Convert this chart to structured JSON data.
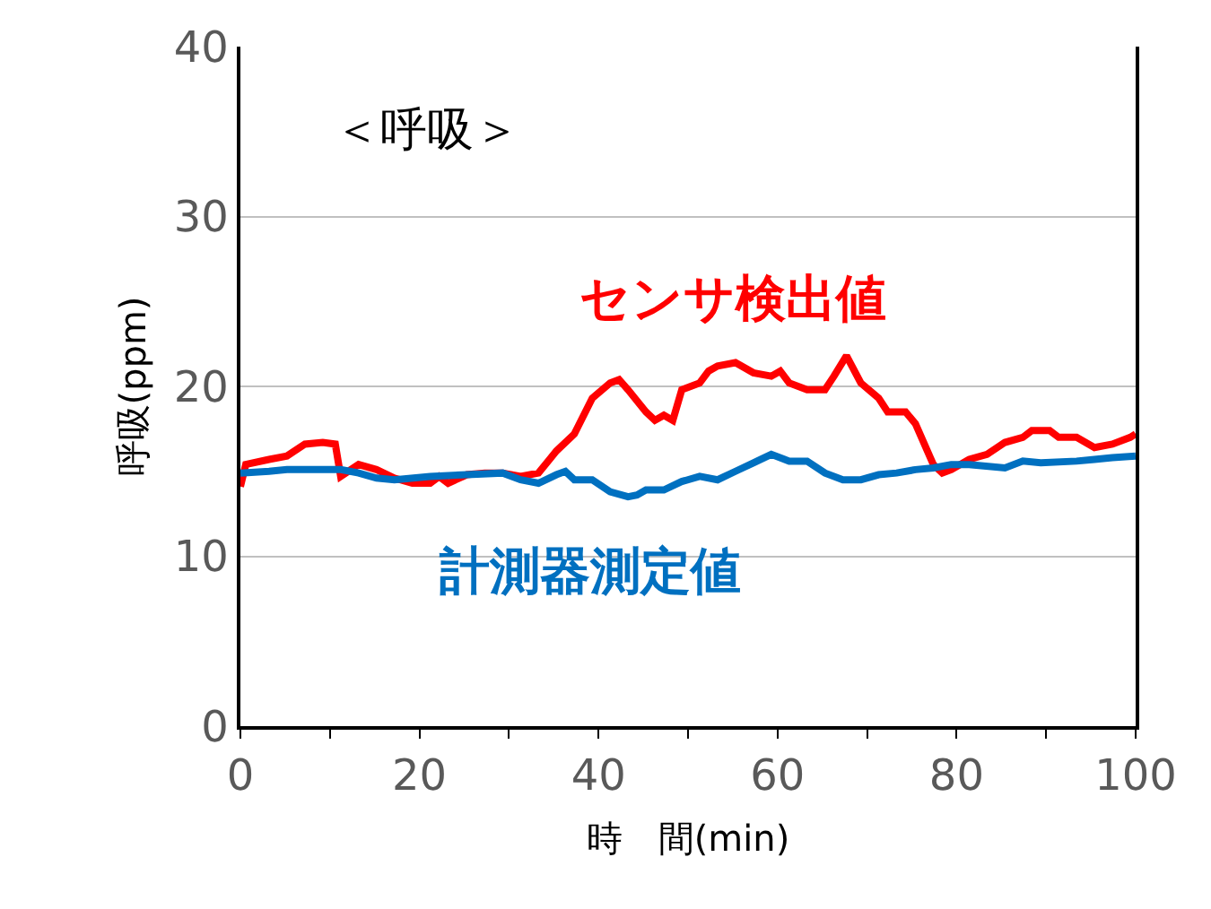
{
  "chart_data": {
    "type": "line",
    "title": "＜呼吸＞",
    "xlabel": "時　間(min)",
    "ylabel": "呼吸(ppm)",
    "xlim": [
      0,
      100
    ],
    "xticks": [
      0,
      {
        "value": 10,
        "label": null
      },
      20,
      {
        "value": 30,
        "label": null
      },
      40,
      {
        "value": 50,
        "label": null
      },
      60,
      {
        "value": 70,
        "label": null
      },
      80,
      {
        "value": 90,
        "label": null
      },
      100
    ],
    "ylim": [
      0,
      40
    ],
    "yticks": [
      0,
      10,
      20,
      30,
      40
    ],
    "grid": "y",
    "legend": false,
    "marker": "none",
    "line_style": "solid",
    "series": [
      {
        "name": "センサ検出値",
        "color": "#ff0000",
        "x": [
          0,
          0.6,
          3.2,
          5.2,
          7.2,
          9.2,
          10.6,
          11.2,
          13.2,
          15.2,
          17.2,
          19.2,
          21.2,
          22.2,
          23.2,
          25.3,
          27.3,
          29.3,
          31.3,
          33.3,
          35.3,
          37.3,
          39.3,
          41.3,
          42.3,
          43.3,
          45.3,
          46.3,
          47.3,
          48.3,
          49.3,
          50.3,
          51.3,
          52.3,
          53.3,
          55.3,
          57.3,
          59.3,
          60.3,
          61.3,
          63.3,
          65.3,
          66.3,
          67.7,
          69.3,
          71.3,
          72.3,
          74.3,
          75.4,
          77.4,
          78.4,
          79.4,
          81.4,
          83.4,
          85.4,
          87.4,
          88.4,
          90.4,
          91.4,
          93.4,
          95.4,
          97.4,
          99.4,
          100
        ],
        "values": [
          14.1,
          15.4,
          15.7,
          15.9,
          16.6,
          16.7,
          16.6,
          14.7,
          15.4,
          15.1,
          14.6,
          14.3,
          14.3,
          14.7,
          14.3,
          14.8,
          14.9,
          14.9,
          14.7,
          14.9,
          16.2,
          17.2,
          19.3,
          20.2,
          20.4,
          19.8,
          18.5,
          18.0,
          18.3,
          18.0,
          19.8,
          20.0,
          20.2,
          20.9,
          21.2,
          21.4,
          20.8,
          20.6,
          20.9,
          20.2,
          19.8,
          19.8,
          20.6,
          21.8,
          20.2,
          19.3,
          18.5,
          18.5,
          17.8,
          15.4,
          14.9,
          15.1,
          15.7,
          16.0,
          16.7,
          17.0,
          17.4,
          17.4,
          17.0,
          17.0,
          16.4,
          16.6,
          17.0,
          17.2
        ]
      },
      {
        "name": "計測器測定値",
        "color": "#0070c0",
        "x": [
          0,
          3.2,
          5.2,
          11.2,
          13.2,
          15.2,
          17.2,
          21.2,
          25.3,
          29.3,
          31.3,
          33.3,
          35.3,
          36.3,
          37.3,
          39.3,
          41.3,
          43.3,
          44.3,
          45.3,
          47.3,
          49.3,
          51.3,
          53.3,
          55.3,
          57.3,
          59.3,
          61.3,
          63.3,
          65.3,
          67.3,
          69.3,
          71.3,
          73.3,
          75.4,
          77.4,
          79.4,
          81.4,
          85.4,
          87.4,
          89.4,
          93.4,
          95.4,
          97.4,
          100
        ],
        "values": [
          14.9,
          15.0,
          15.1,
          15.1,
          14.9,
          14.6,
          14.5,
          14.7,
          14.8,
          14.9,
          14.5,
          14.3,
          14.8,
          15.0,
          14.5,
          14.5,
          13.8,
          13.5,
          13.6,
          13.9,
          13.9,
          14.4,
          14.7,
          14.5,
          15.0,
          15.5,
          16.0,
          15.6,
          15.6,
          14.9,
          14.5,
          14.5,
          14.8,
          14.9,
          15.1,
          15.2,
          15.4,
          15.4,
          15.2,
          15.6,
          15.5,
          15.6,
          15.7,
          15.8,
          15.9
        ]
      }
    ]
  }
}
